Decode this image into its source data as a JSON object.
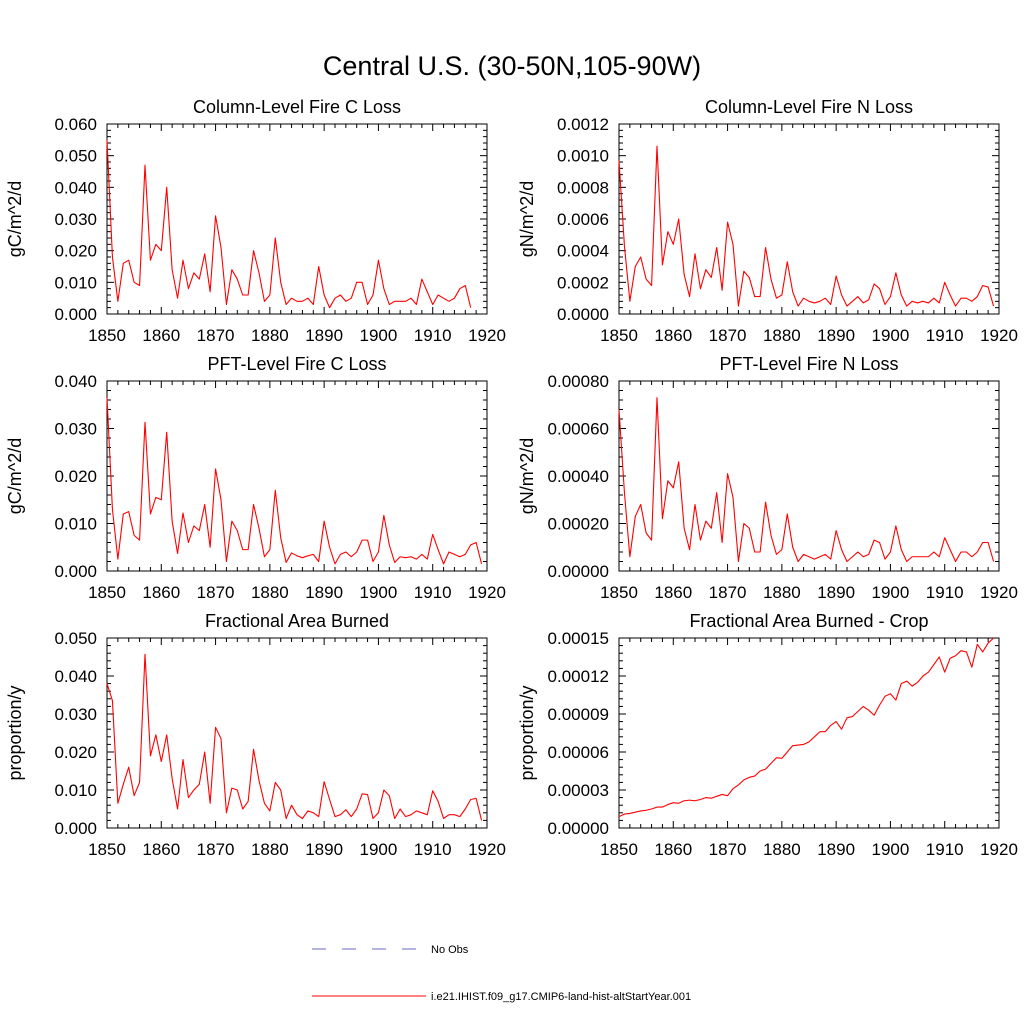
{
  "figure_title": "Central U.S. (30-50N,105-90W)",
  "colors": {
    "model": "#ff0000",
    "obs": "#6a6ac8",
    "axis": "#000000",
    "background": "#ffffff"
  },
  "legend": {
    "obs_label": "No Obs",
    "model_label": "i.e21.IHIST.f09_g17.CMIP6-land-hist-altStartYear.001",
    "placement": "bottom-center"
  },
  "chart_data": [
    {
      "type": "line",
      "title": "Column-Level Fire C Loss",
      "xlabel": "",
      "ylabel": "gC/m^2/d",
      "xlim": [
        1850,
        1920
      ],
      "ylim": [
        0,
        0.06
      ],
      "yticks": [
        "0.000",
        "0.010",
        "0.020",
        "0.030",
        "0.040",
        "0.050",
        "0.060"
      ],
      "xticks": [
        "1850",
        "1860",
        "1870",
        "1880",
        "1890",
        "1900",
        "1910",
        "1920"
      ],
      "x_start": 1850,
      "grid": false,
      "series": [
        {
          "values": [
            0.055,
            0.018,
            0.004,
            0.016,
            0.017,
            0.01,
            0.009,
            0.047,
            0.017,
            0.022,
            0.02,
            0.04,
            0.014,
            0.005,
            0.017,
            0.008,
            0.013,
            0.011,
            0.019,
            0.007,
            0.031,
            0.021,
            0.003,
            0.014,
            0.011,
            0.006,
            0.006,
            0.02,
            0.013,
            0.004,
            0.006,
            0.024,
            0.01,
            0.003,
            0.005,
            0.004,
            0.004,
            0.005,
            0.003,
            0.015,
            0.006,
            0.002,
            0.005,
            0.006,
            0.004,
            0.005,
            0.01,
            0.01,
            0.003,
            0.006,
            0.017,
            0.008,
            0.003,
            0.004,
            0.004,
            0.004,
            0.005,
            0.003,
            0.011,
            0.007,
            0.003,
            0.006,
            0.005,
            0.004,
            0.005,
            0.008,
            0.009,
            0.002
          ]
        }
      ]
    },
    {
      "type": "line",
      "title": "Column-Level Fire N Loss",
      "xlabel": "",
      "ylabel": "gN/m^2/d",
      "xlim": [
        1850,
        1920
      ],
      "ylim": [
        0,
        0.0012
      ],
      "yticks": [
        "0.0000",
        "0.0002",
        "0.0004",
        "0.0006",
        "0.0008",
        "0.0010",
        "0.0012"
      ],
      "xticks": [
        "1850",
        "1860",
        "1870",
        "1880",
        "1890",
        "1900",
        "1910",
        "1920"
      ],
      "x_start": 1850,
      "grid": false,
      "series": [
        {
          "values": [
            0.00097,
            0.00043,
            8e-05,
            0.0003,
            0.00036,
            0.00022,
            0.00018,
            0.00106,
            0.00031,
            0.00052,
            0.00044,
            0.0006,
            0.00025,
            0.00011,
            0.00038,
            0.00016,
            0.00028,
            0.00023,
            0.00042,
            0.00015,
            0.00058,
            0.00044,
            5e-05,
            0.00027,
            0.00023,
            0.00011,
            0.00011,
            0.00042,
            0.00022,
            0.0001,
            0.00012,
            0.00033,
            0.00014,
            5e-05,
            0.0001,
            8e-05,
            7e-05,
            8e-05,
            0.0001,
            6e-05,
            0.00024,
            0.00012,
            5e-05,
            8e-05,
            0.00011,
            7e-05,
            9e-05,
            0.00019,
            0.00016,
            6e-05,
            0.00011,
            0.00026,
            0.00012,
            5e-05,
            8e-05,
            7e-05,
            8e-05,
            7e-05,
            0.0001,
            7e-05,
            0.0002,
            0.00012,
            5e-05,
            0.0001,
            0.0001,
            8e-05,
            0.00011,
            0.00018,
            0.00017,
            5e-05
          ]
        }
      ]
    },
    {
      "type": "line",
      "title": "PFT-Level Fire C Loss",
      "xlabel": "",
      "ylabel": "gC/m^2/d",
      "xlim": [
        1850,
        1920
      ],
      "ylim": [
        0,
        0.04
      ],
      "yticks": [
        "0.000",
        "0.010",
        "0.020",
        "0.030",
        "0.040"
      ],
      "xticks": [
        "1850",
        "1860",
        "1870",
        "1880",
        "1890",
        "1900",
        "1910",
        "1920"
      ],
      "x_start": 1850,
      "grid": false,
      "series": [
        {
          "values": [
            0.0365,
            0.013,
            0.0025,
            0.012,
            0.0125,
            0.0075,
            0.0065,
            0.0313,
            0.012,
            0.0155,
            0.015,
            0.0292,
            0.0105,
            0.0037,
            0.0122,
            0.006,
            0.0095,
            0.0085,
            0.014,
            0.005,
            0.0215,
            0.015,
            0.002,
            0.0105,
            0.0085,
            0.0045,
            0.0045,
            0.014,
            0.009,
            0.003,
            0.0045,
            0.017,
            0.007,
            0.0018,
            0.0038,
            0.0032,
            0.0028,
            0.0032,
            0.0035,
            0.002,
            0.0105,
            0.005,
            0.0015,
            0.0035,
            0.004,
            0.003,
            0.004,
            0.0065,
            0.0065,
            0.002,
            0.004,
            0.0117,
            0.0055,
            0.0018,
            0.003,
            0.0028,
            0.003,
            0.0025,
            0.0035,
            0.0025,
            0.0077,
            0.0045,
            0.0015,
            0.004,
            0.0035,
            0.003,
            0.0035,
            0.0055,
            0.006,
            0.0015
          ]
        }
      ]
    },
    {
      "type": "line",
      "title": "PFT-Level Fire N Loss",
      "xlabel": "",
      "ylabel": "gN/m^2/d",
      "xlim": [
        1850,
        1920
      ],
      "ylim": [
        0,
        0.0008
      ],
      "yticks": [
        "0.00000",
        "0.00020",
        "0.00040",
        "0.00060",
        "0.00080"
      ],
      "xticks": [
        "1850",
        "1860",
        "1870",
        "1880",
        "1890",
        "1900",
        "1910",
        "1920"
      ],
      "x_start": 1850,
      "grid": false,
      "series": [
        {
          "values": [
            0.00068,
            0.00033,
            6e-05,
            0.00023,
            0.00028,
            0.00016,
            0.00013,
            0.00073,
            0.00022,
            0.00038,
            0.00035,
            0.00046,
            0.00018,
            9e-05,
            0.00028,
            0.00013,
            0.00021,
            0.00018,
            0.00033,
            0.00012,
            0.00041,
            0.00031,
            4e-05,
            0.0002,
            0.00018,
            8e-05,
            8e-05,
            0.00029,
            0.00015,
            7e-05,
            9e-05,
            0.00024,
            0.0001,
            4e-05,
            7e-05,
            6e-05,
            5e-05,
            6e-05,
            7e-05,
            5e-05,
            0.00017,
            9e-05,
            4e-05,
            6e-05,
            8e-05,
            6e-05,
            7e-05,
            0.00013,
            0.00012,
            5e-05,
            8e-05,
            0.00019,
            9e-05,
            4e-05,
            6e-05,
            6e-05,
            6e-05,
            6e-05,
            8e-05,
            6e-05,
            0.00014,
            9e-05,
            4e-05,
            8e-05,
            8e-05,
            6e-05,
            8e-05,
            0.00012,
            0.00012,
            4e-05
          ]
        }
      ]
    },
    {
      "type": "line",
      "title": "Fractional Area Burned",
      "xlabel": "",
      "ylabel": "proportion/y",
      "xlim": [
        1850,
        1920
      ],
      "ylim": [
        0,
        0.05
      ],
      "yticks": [
        "0.000",
        "0.010",
        "0.020",
        "0.030",
        "0.040",
        "0.050"
      ],
      "xticks": [
        "1850",
        "1860",
        "1870",
        "1880",
        "1890",
        "1900",
        "1910",
        "1920"
      ],
      "x_start": 1850,
      "grid": false,
      "series": [
        {
          "values": [
            0.038,
            0.0335,
            0.0065,
            0.0115,
            0.016,
            0.0085,
            0.012,
            0.0457,
            0.019,
            0.0245,
            0.0175,
            0.0245,
            0.013,
            0.005,
            0.018,
            0.008,
            0.01,
            0.0115,
            0.02,
            0.0065,
            0.0265,
            0.0235,
            0.004,
            0.0105,
            0.01,
            0.005,
            0.007,
            0.0207,
            0.0125,
            0.0065,
            0.0045,
            0.012,
            0.01,
            0.0025,
            0.006,
            0.0035,
            0.0025,
            0.0045,
            0.004,
            0.003,
            0.0122,
            0.0075,
            0.003,
            0.0035,
            0.0048,
            0.003,
            0.005,
            0.009,
            0.0088,
            0.0025,
            0.004,
            0.01,
            0.0085,
            0.0025,
            0.005,
            0.003,
            0.0035,
            0.0045,
            0.004,
            0.0035,
            0.0098,
            0.007,
            0.0025,
            0.0035,
            0.0035,
            0.003,
            0.005,
            0.0075,
            0.0078,
            0.002
          ]
        }
      ]
    },
    {
      "type": "line",
      "title": "Fractional Area Burned - Crop",
      "xlabel": "",
      "ylabel": "proportion/y",
      "xlim": [
        1850,
        1920
      ],
      "ylim": [
        0,
        0.00015
      ],
      "yticks": [
        "0.00000",
        "0.00003",
        "0.00006",
        "0.00009",
        "0.00012",
        "0.00015"
      ],
      "xticks": [
        "1850",
        "1860",
        "1870",
        "1880",
        "1890",
        "1900",
        "1910",
        "1920"
      ],
      "x_start": 1850,
      "grid": false,
      "series": [
        {
          "values": [
            9e-06,
            1.1e-05,
            1.15e-05,
            1.25e-05,
            1.35e-05,
            1.4e-05,
            1.5e-05,
            1.65e-05,
            1.65e-05,
            1.85e-05,
            2e-05,
            1.95e-05,
            2.15e-05,
            2.2e-05,
            2.15e-05,
            2.25e-05,
            2.4e-05,
            2.35e-05,
            2.5e-05,
            2.65e-05,
            2.55e-05,
            3.1e-05,
            3.4e-05,
            3.8e-05,
            4e-05,
            4.1e-05,
            4.5e-05,
            4.65e-05,
            5.1e-05,
            5.55e-05,
            5.5e-05,
            6e-05,
            6.5e-05,
            6.55e-05,
            6.6e-05,
            6.8e-05,
            7.2e-05,
            7.6e-05,
            7.6e-05,
            8.1e-05,
            8.4e-05,
            7.8e-05,
            8.7e-05,
            8.8e-05,
            9.2e-05,
            9.6e-05,
            9.3e-05,
            8.9e-05,
            9.7e-05,
            0.000104,
            0.000106,
            0.000101,
            0.000114,
            0.000116,
            0.000112,
            0.000115,
            0.00012,
            0.000123,
            0.000129,
            0.000135,
            0.000123,
            0.000134,
            0.000136,
            0.00014,
            0.000139,
            0.000127,
            0.000145,
            0.000139,
            0.000146,
            0.00015
          ]
        }
      ]
    }
  ]
}
